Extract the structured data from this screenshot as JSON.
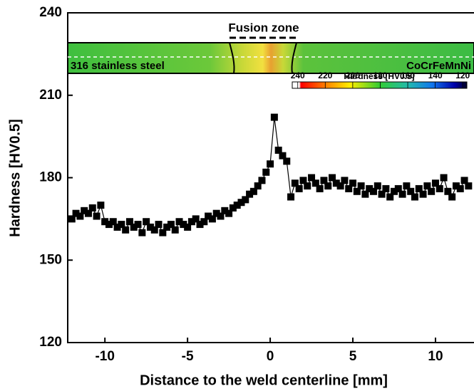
{
  "chart_data": {
    "type": "scatter",
    "xlabel": "Distance to the weld centerline [mm]",
    "ylabel": "Hardness [HV0.5]",
    "xlim": [
      -12.25,
      12.33
    ],
    "ylim": [
      120,
      240
    ],
    "xticks": [
      -10,
      -5,
      0,
      5,
      10
    ],
    "yticks": [
      120,
      150,
      180,
      210,
      240
    ],
    "series": [
      {
        "color": "#000000",
        "x": [
          -12,
          -11.75,
          -11.5,
          -11.25,
          -11,
          -10.75,
          -10.5,
          -10.25,
          -10,
          -9.75,
          -9.5,
          -9.25,
          -9,
          -8.75,
          -8.5,
          -8.25,
          -8,
          -7.75,
          -7.5,
          -7.25,
          -7,
          -6.75,
          -6.5,
          -6.25,
          -6,
          -5.75,
          -5.5,
          -5.25,
          -5,
          -4.75,
          -4.5,
          -4.25,
          -4,
          -3.75,
          -3.5,
          -3.25,
          -3,
          -2.75,
          -2.5,
          -2.25,
          -2,
          -1.75,
          -1.5,
          -1.25,
          -1,
          -0.75,
          -0.5,
          -0.25,
          0,
          0.25,
          0.5,
          0.75,
          1,
          1.25,
          1.5,
          1.75,
          2,
          2.25,
          2.5,
          2.75,
          3,
          3.25,
          3.5,
          3.75,
          4,
          4.25,
          4.5,
          4.75,
          5,
          5.25,
          5.5,
          5.75,
          6,
          6.25,
          6.5,
          6.75,
          7,
          7.25,
          7.5,
          7.75,
          8,
          8.25,
          8.5,
          8.75,
          9,
          9.25,
          9.5,
          9.75,
          10,
          10.25,
          10.5,
          10.75,
          11,
          11.25,
          11.5,
          11.75,
          12
        ],
        "values": [
          165,
          167,
          166,
          168,
          167,
          169,
          166,
          170,
          164,
          163,
          164,
          162,
          163,
          161,
          164,
          162,
          163,
          160,
          164,
          162,
          161,
          163,
          160,
          162,
          163,
          161,
          164,
          163,
          162,
          164,
          165,
          163,
          164,
          166,
          165,
          167,
          166,
          168,
          167,
          169,
          170,
          171,
          172,
          174,
          175,
          177,
          179,
          182,
          185,
          202,
          190,
          188,
          186,
          173,
          178,
          176,
          179,
          177,
          180,
          178,
          176,
          179,
          177,
          180,
          178,
          177,
          179,
          176,
          178,
          175,
          177,
          174,
          176,
          175,
          177,
          174,
          176,
          173,
          175,
          176,
          174,
          177,
          175,
          173,
          176,
          174,
          177,
          175,
          178,
          176,
          180,
          175,
          173,
          177,
          176,
          179,
          177
        ]
      }
    ],
    "inset": {
      "left_label": "316 stainless steel",
      "right_label": "CoCrFeMnNi",
      "zone_label": "Fusion zone"
    },
    "colorbar": {
      "title": "Hardness [HV0.5]",
      "lim": [
        244,
        117
      ],
      "ticks": [
        240,
        220,
        200,
        180,
        160,
        140,
        120
      ]
    }
  }
}
